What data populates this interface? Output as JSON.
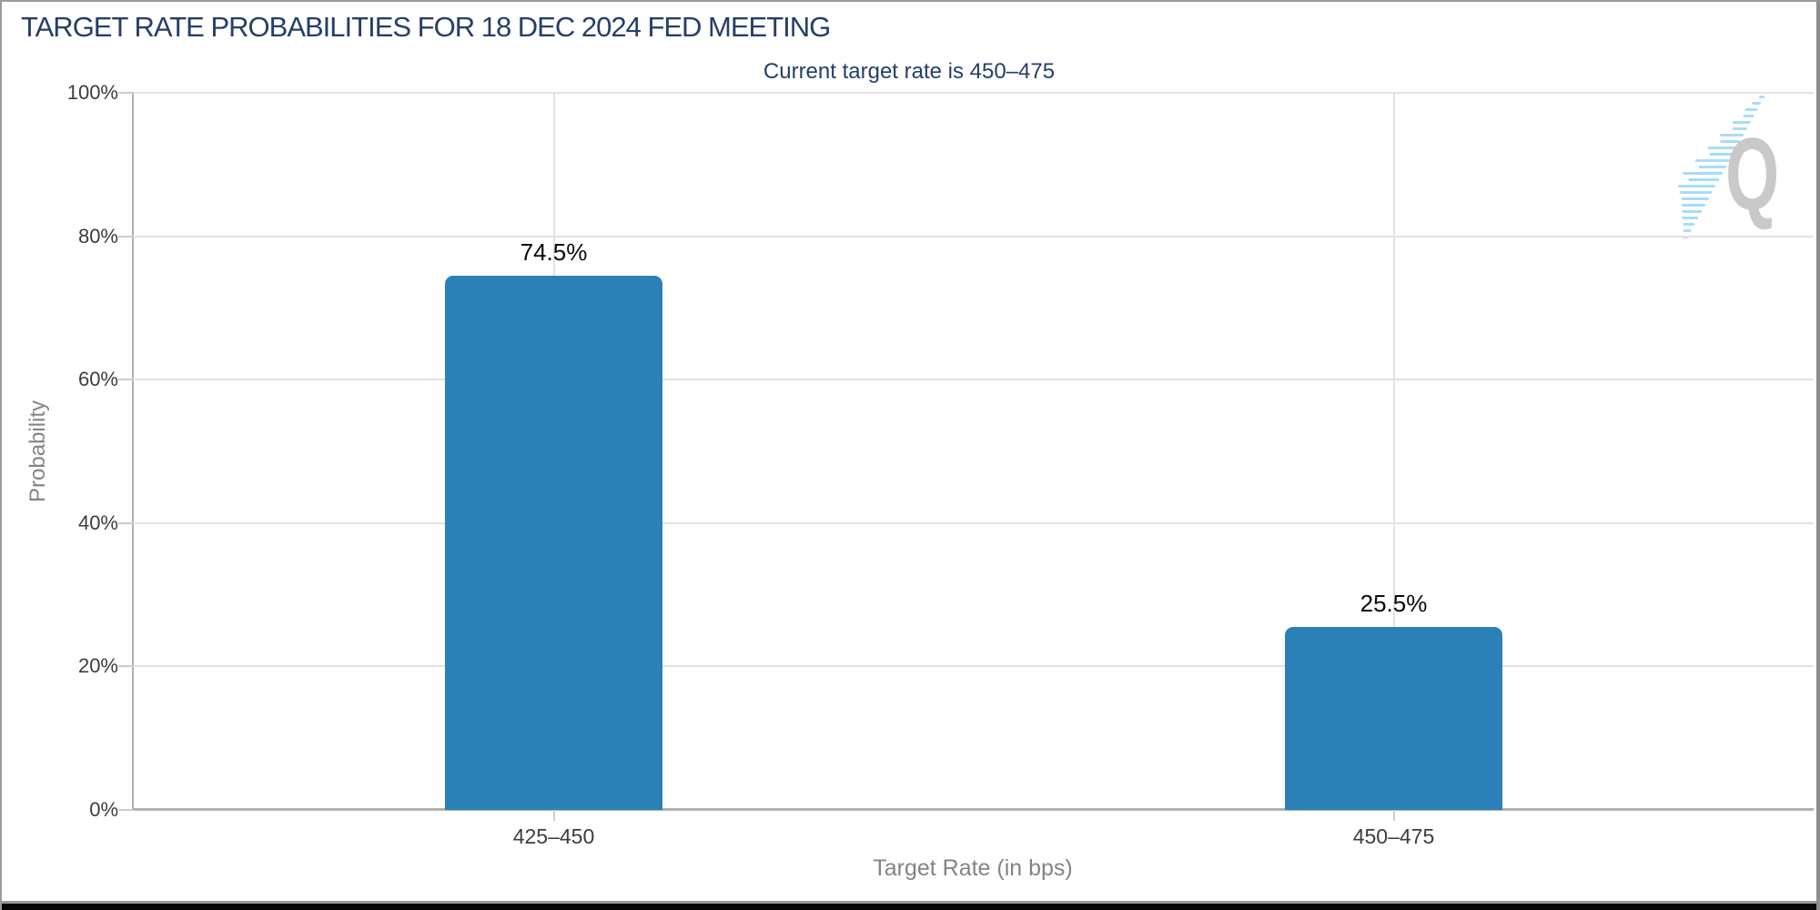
{
  "chart_data": {
    "type": "bar",
    "title": "TARGET RATE PROBABILITIES FOR 18 DEC 2024 FED MEETING",
    "subtitle": "Current target rate is 450–475",
    "categories": [
      "425–450",
      "450–475"
    ],
    "values": [
      74.5,
      25.5
    ],
    "value_labels": [
      "74.5%",
      "25.5%"
    ],
    "xlabel": "Target Rate (in bps)",
    "ylabel": "Probability",
    "ylim": [
      0,
      100
    ],
    "y_ticks": [
      0,
      20,
      40,
      60,
      80,
      100
    ],
    "y_tick_suffix": "%",
    "grid": {
      "horizontal": true,
      "vertical_at_category_centers": true
    },
    "legend_position": "none",
    "bar_color": "#2c80b8"
  },
  "watermark": {
    "letter": "Q",
    "icon": "quikstrike-q-logo-watermark"
  },
  "colors": {
    "title_navy": "#263e68",
    "bar_blue": "#2c80b8",
    "grid_light": "#e3e3e3",
    "axis_gray": "#b2b2b2",
    "tick_gray": "#cccccc",
    "tick_text": "#3d3d3d",
    "axis_title_text": "#848484",
    "data_label_text": "#0a0a0a",
    "frame_gray": "#9b9b9b",
    "frame_right_gray": "#8c8c8c",
    "bottom_black": "#070707",
    "watermark_q_gray": "#c9c9c9",
    "watermark_dash_blue": "#a9dcf5",
    "background": "#ffffff"
  }
}
